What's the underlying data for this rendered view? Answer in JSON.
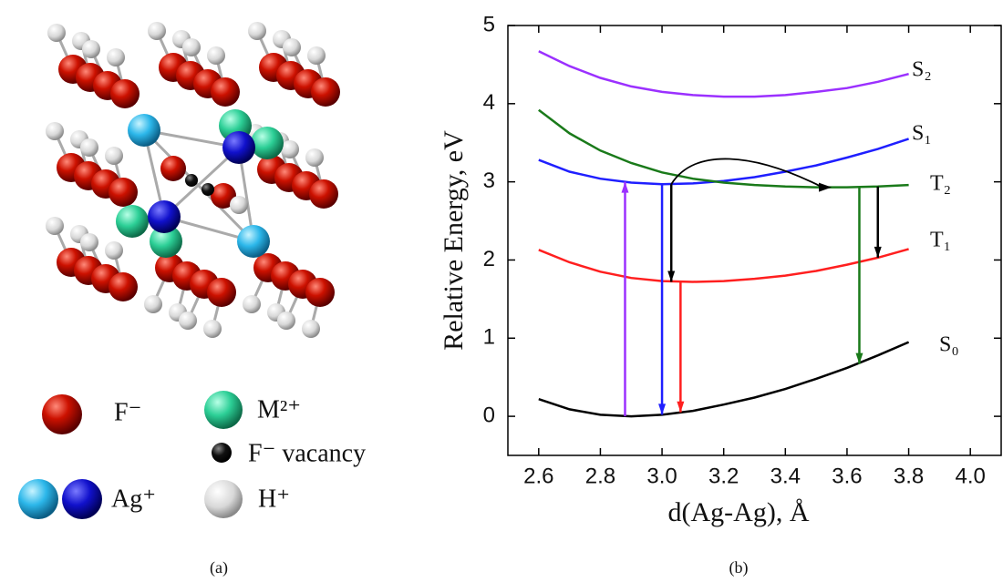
{
  "chart_data": {
    "type": "line",
    "x_label": "d(Ag-Ag), Å",
    "y_label": "Relative Energy, eV",
    "xlim": [
      2.5,
      4.1
    ],
    "ylim": [
      -0.5,
      5
    ],
    "xticks": [
      2.6,
      2.8,
      {
        "value": 3,
        "label": "3.0"
      },
      3.2,
      3.4,
      3.6,
      3.8,
      {
        "value": 4,
        "label": "4.0"
      }
    ],
    "yticks": [
      0,
      1,
      2,
      3,
      4,
      5
    ],
    "x": [
      2.6,
      2.7,
      2.8,
      2.9,
      3.0,
      3.1,
      3.2,
      3.3,
      3.4,
      3.5,
      3.6,
      3.7,
      3.8
    ],
    "series": [
      {
        "name": "S₂",
        "color": "#9b30ff",
        "values": [
          4.67,
          4.48,
          4.33,
          4.22,
          4.15,
          4.11,
          4.09,
          4.09,
          4.11,
          4.15,
          4.2,
          4.28,
          4.38
        ]
      },
      {
        "name": "S₁",
        "color": "#1f1fff",
        "values": [
          3.28,
          3.13,
          3.04,
          2.99,
          2.97,
          2.98,
          3.01,
          3.06,
          3.13,
          3.21,
          3.31,
          3.42,
          3.55
        ]
      },
      {
        "name": "T₂",
        "color": "#1a7a1a",
        "values": [
          3.92,
          3.62,
          3.4,
          3.24,
          3.12,
          3.04,
          2.99,
          2.96,
          2.94,
          2.93,
          2.93,
          2.94,
          2.96
        ]
      },
      {
        "name": "T₁",
        "color": "#ff1f1f",
        "values": [
          2.13,
          1.97,
          1.85,
          1.77,
          1.73,
          1.72,
          1.73,
          1.76,
          1.8,
          1.86,
          1.94,
          2.03,
          2.14
        ]
      },
      {
        "name": "S₀",
        "color": "#000000",
        "values": [
          0.22,
          0.09,
          0.02,
          0,
          0.02,
          0.07,
          0.15,
          0.24,
          0.35,
          0.48,
          0.62,
          0.78,
          0.95
        ]
      }
    ],
    "arrows": [
      {
        "x": 2.88,
        "from": 0,
        "to": 3.0,
        "color": "#9b30ff"
      },
      {
        "x": 3.0,
        "from": 2.97,
        "to": 0.02,
        "color": "#1f1fff"
      },
      {
        "x": 3.06,
        "from": 1.72,
        "to": 0.05,
        "color": "#ff1f1f"
      },
      {
        "x": 3.03,
        "from": 2.97,
        "to": 1.72,
        "color": "#000000"
      },
      {
        "x": 3.64,
        "from": 2.93,
        "to": 0.67,
        "color": "#1a7a1a"
      },
      {
        "x": 3.7,
        "from": 2.94,
        "to": 2.03,
        "color": "#000000"
      }
    ],
    "curved_arrow": {
      "x": [
        3.03,
        3.55
      ],
      "y": [
        2.97,
        2.93
      ],
      "color": "#000000"
    }
  },
  "diagram": {
    "legend": [
      "F⁻",
      "M²⁺",
      "F⁻ vacancy",
      "Ag⁺",
      "H⁺"
    ]
  },
  "captions": [
    "(a)",
    "(b)"
  ]
}
